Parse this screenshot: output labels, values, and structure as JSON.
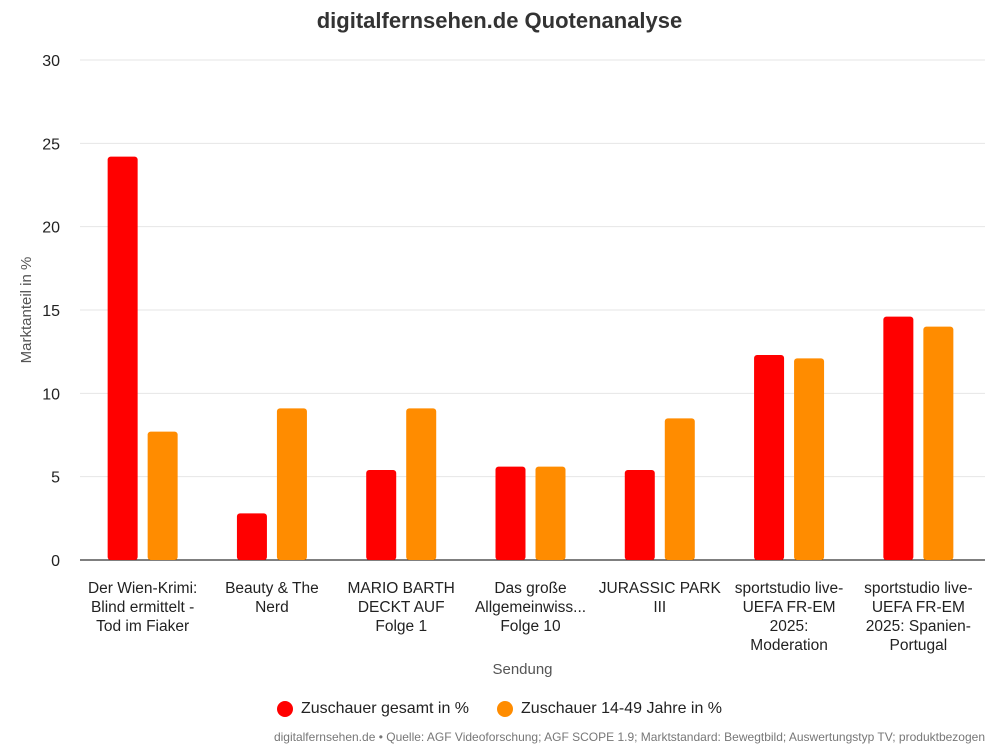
{
  "chart_data": {
    "type": "bar",
    "title": "digitalfernsehen.de Quotenanalyse",
    "xlabel": "Sendung",
    "ylabel": "Marktanteil in %",
    "ylim": [
      0,
      30
    ],
    "yticks": [
      "0",
      "5",
      "10",
      "15",
      "20",
      "25",
      "30"
    ],
    "grid": true,
    "legend_position": "bottom",
    "categories": [
      [
        "Der Wien-Krimi:",
        "Blind ermittelt -",
        "Tod im Fiaker"
      ],
      [
        "Beauty & The",
        "Nerd"
      ],
      [
        "MARIO BARTH",
        "DECKT AUF",
        "Folge 1"
      ],
      [
        "Das große",
        "Allgemeinwiss...",
        "Folge 10"
      ],
      [
        "JURASSIC PARK",
        "III"
      ],
      [
        "sportstudio live-",
        "UEFA FR-EM",
        "2025:",
        "Moderation"
      ],
      [
        "sportstudio live-",
        "UEFA FR-EM",
        "2025: Spanien-",
        "Portugal"
      ]
    ],
    "series": [
      {
        "name": "Zuschauer gesamt in %",
        "color": "#ff0000",
        "values": [
          24.2,
          2.8,
          5.4,
          5.6,
          5.4,
          12.3,
          14.6
        ]
      },
      {
        "name": "Zuschauer 14-49 Jahre in %",
        "color": "#ff8c00",
        "values": [
          7.7,
          9.1,
          9.1,
          5.6,
          8.5,
          12.1,
          14.0
        ]
      }
    ]
  },
  "footer": "digitalfernsehen.de • Quelle: AGF Videoforschung; AGF SCOPE 1.9; Marktstandard: Bewegtbild; Auswertungstyp TV; produktbezogen"
}
